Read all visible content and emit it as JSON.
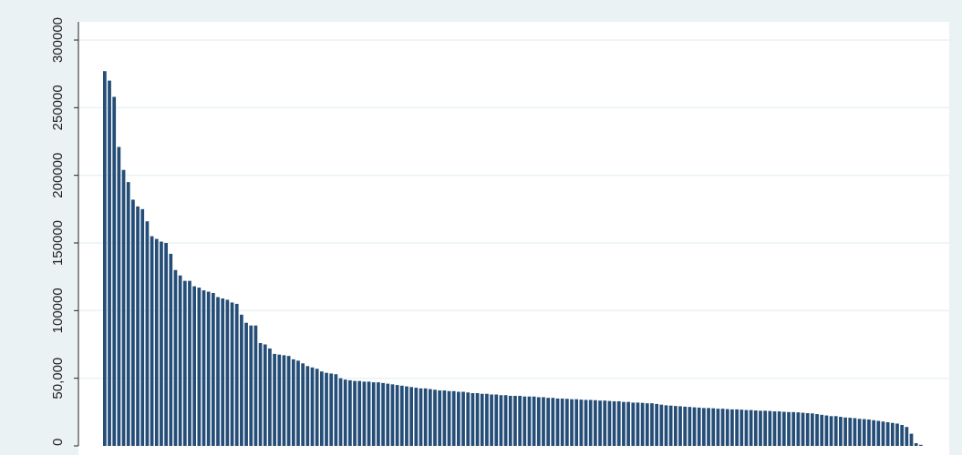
{
  "chart_data": {
    "type": "bar",
    "title": "",
    "xlabel": "",
    "ylabel": "",
    "ylim": [
      0,
      300000
    ],
    "grid": true,
    "legend": "none",
    "colors": {
      "background": "#eaf2f3",
      "plot_background": "#ffffff",
      "bar": "#244d77",
      "grid": "#eaf2f3",
      "axis": "#222222"
    },
    "yticks": [
      {
        "value": 0,
        "label": "0"
      },
      {
        "value": 50000,
        "label": "50,000"
      },
      {
        "value": 100000,
        "label": "100000"
      },
      {
        "value": 150000,
        "label": "150000"
      },
      {
        "value": 200000,
        "label": "200000"
      },
      {
        "value": 250000,
        "label": "250000"
      },
      {
        "value": 300000,
        "label": "300000"
      }
    ],
    "values": [
      277000,
      270000,
      258000,
      221000,
      204000,
      195000,
      182000,
      177000,
      175000,
      166000,
      155000,
      153000,
      151000,
      150000,
      142000,
      130000,
      126000,
      122000,
      122000,
      118000,
      117000,
      115000,
      114000,
      113000,
      110000,
      109000,
      108000,
      106000,
      105000,
      97000,
      91000,
      89000,
      89000,
      76000,
      75000,
      72000,
      68000,
      67500,
      67000,
      66500,
      64000,
      63000,
      61000,
      59000,
      58000,
      57000,
      55000,
      54000,
      53500,
      53000,
      50000,
      49000,
      48500,
      48000,
      48000,
      47500,
      47500,
      47000,
      47000,
      46500,
      46000,
      45500,
      45000,
      44500,
      44000,
      43500,
      43000,
      42500,
      42500,
      42000,
      41500,
      41000,
      41000,
      40500,
      40500,
      40000,
      40000,
      39500,
      39000,
      39000,
      38500,
      38500,
      38000,
      38000,
      37500,
      37500,
      37000,
      37000,
      37000,
      36500,
      36500,
      36500,
      36000,
      36000,
      35500,
      35500,
      35000,
      35000,
      34800,
      34500,
      34500,
      34200,
      34000,
      34000,
      33800,
      33500,
      33500,
      33200,
      33000,
      33000,
      32500,
      32500,
      32000,
      32000,
      31800,
      31500,
      31500,
      31000,
      30500,
      30000,
      29800,
      29500,
      29300,
      29000,
      28800,
      28500,
      28300,
      28000,
      28000,
      27800,
      27500,
      27500,
      27200,
      27000,
      27000,
      26800,
      26500,
      26500,
      26200,
      26000,
      26000,
      25800,
      25500,
      25500,
      25200,
      25000,
      25000,
      24800,
      24500,
      24200,
      24000,
      23500,
      23000,
      22500,
      22000,
      22000,
      21500,
      21000,
      20800,
      20500,
      20000,
      19800,
      19500,
      19000,
      18500,
      18000,
      17500,
      17000,
      16500,
      15500,
      14000,
      9000,
      2000,
      800
    ]
  }
}
